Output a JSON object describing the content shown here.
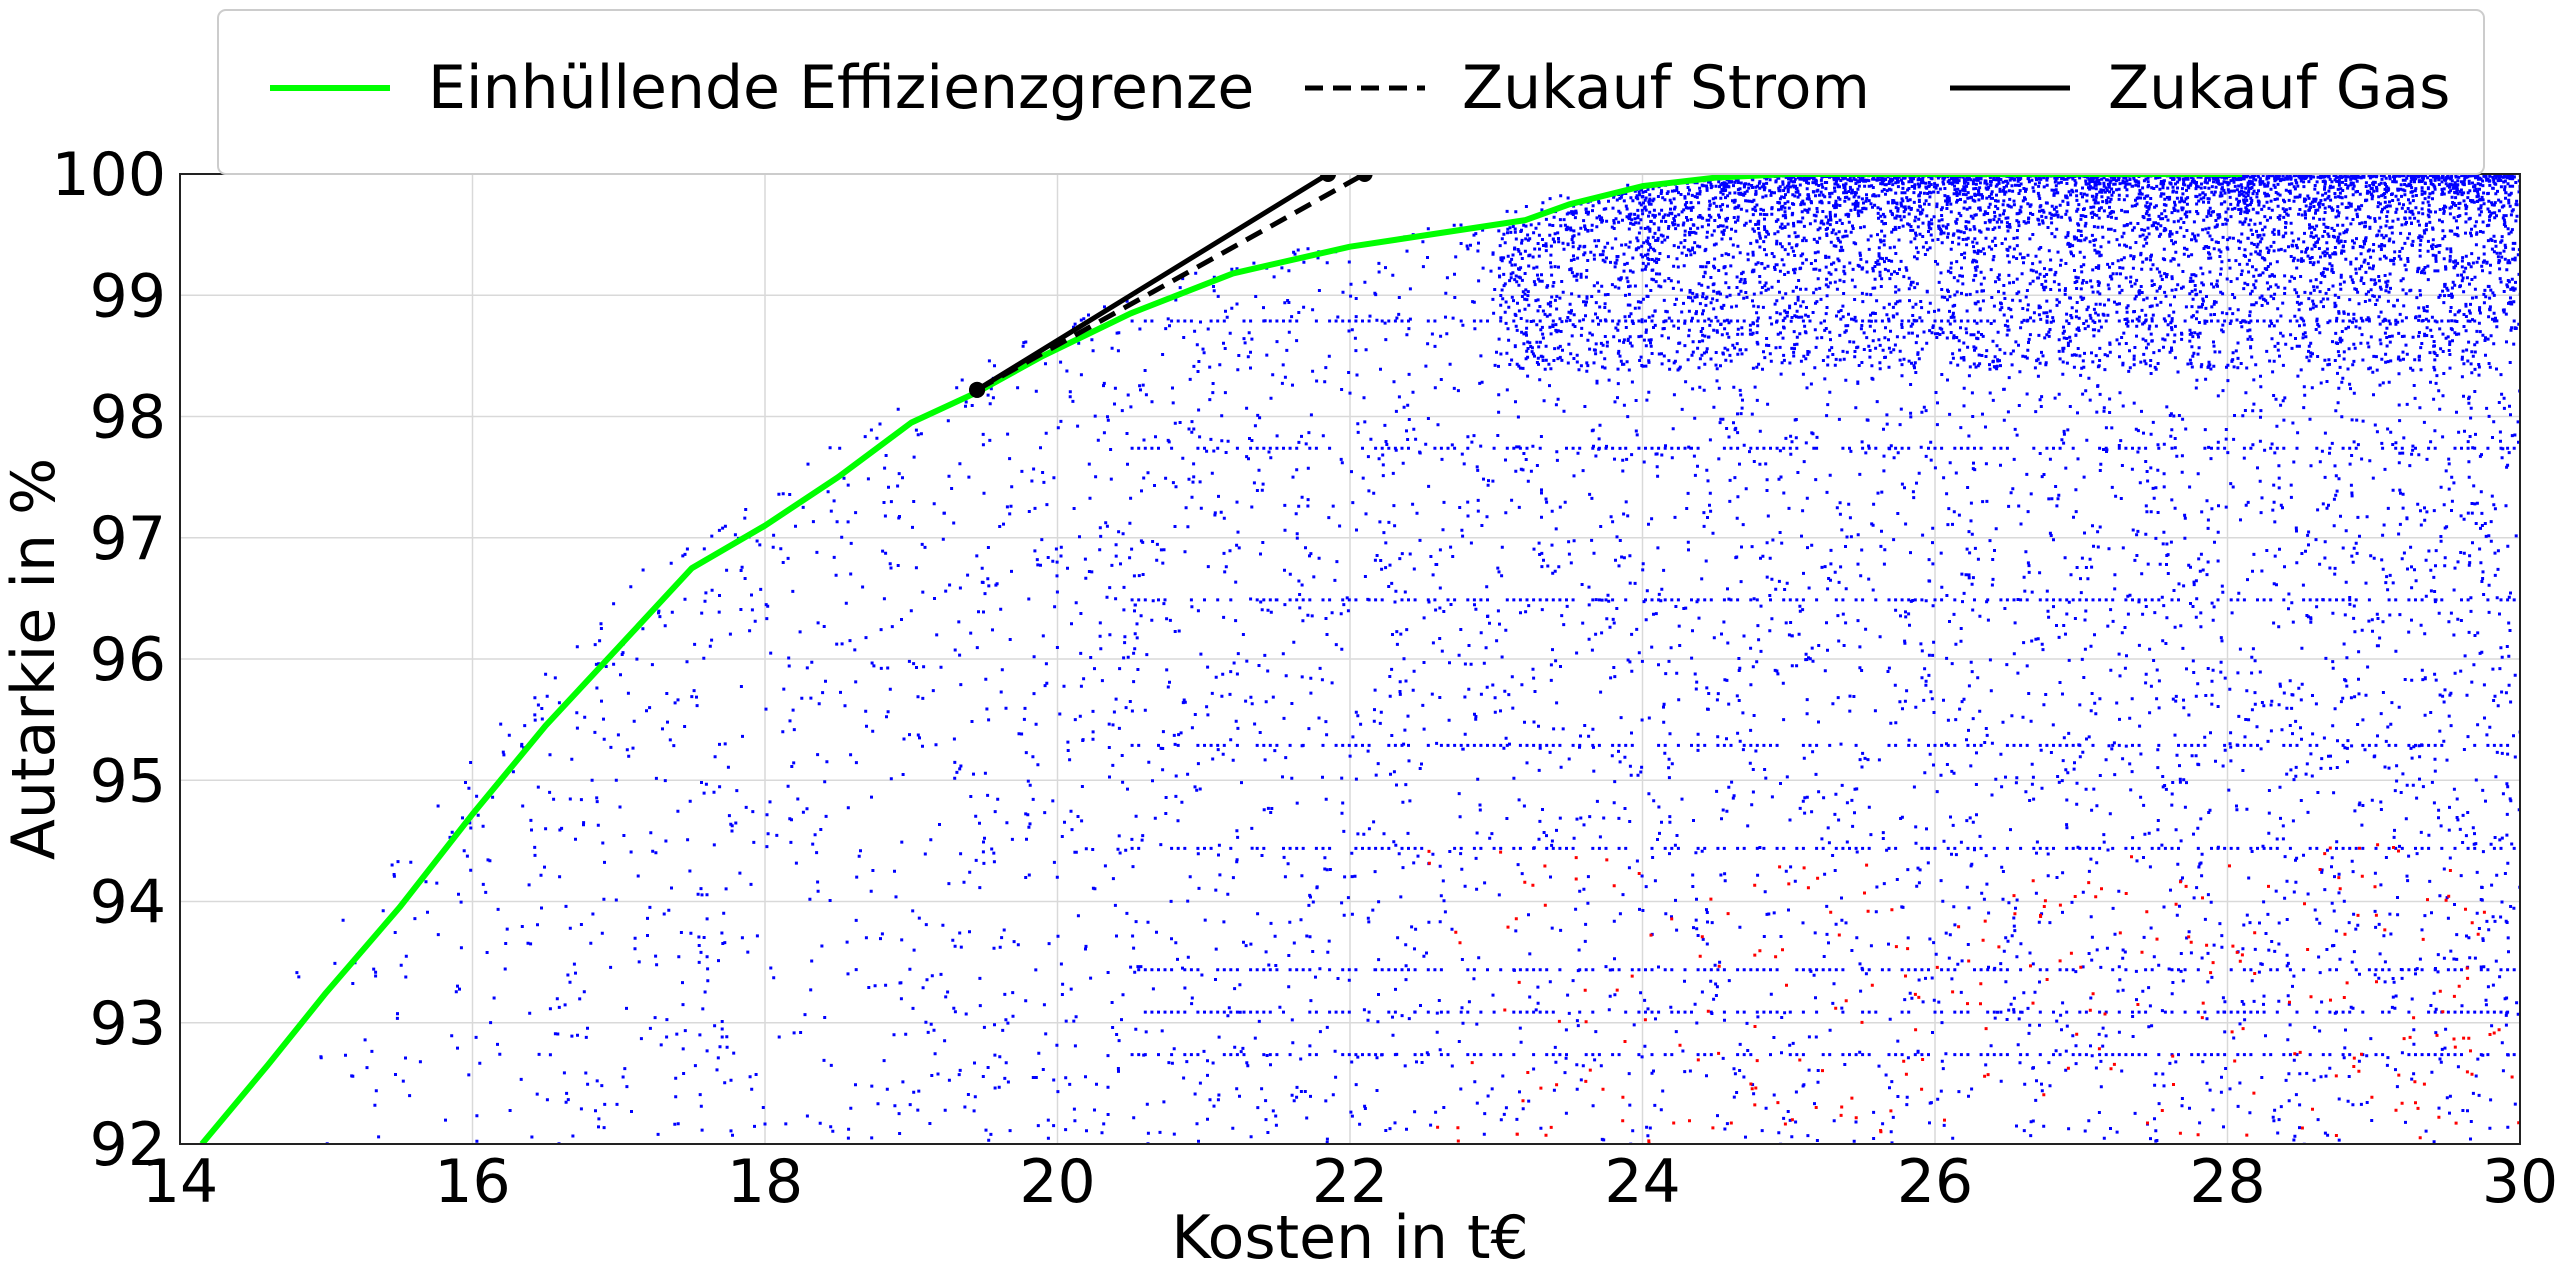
{
  "chart_data": {
    "type": "scatter",
    "xlabel": "Kosten in t€",
    "ylabel": "Autarkie in %",
    "xlim": [
      14,
      30
    ],
    "ylim": [
      92,
      100
    ],
    "xticks": [
      "14",
      "16",
      "18",
      "20",
      "22",
      "24",
      "26",
      "28",
      "30"
    ],
    "yticks": [
      "92",
      "93",
      "94",
      "95",
      "96",
      "97",
      "98",
      "99",
      "100"
    ],
    "grid": true,
    "legend_position": "top-center",
    "legend": [
      {
        "label": "Einhüllende Effizienzgrenze",
        "color": "#00ff00",
        "style": "solid"
      },
      {
        "label": "Zukauf Strom",
        "color": "#000000",
        "style": "dashed"
      },
      {
        "label": "Zukauf Gas",
        "color": "#000000",
        "style": "solid"
      }
    ],
    "scatter_colors": {
      "main": "#0000ff",
      "secondary": "#ff0000"
    },
    "frontier": {
      "name": "Einhüllende Effizienzgrenze",
      "color": "#00ff00",
      "x": [
        14.15,
        14.6,
        15.0,
        15.5,
        16.0,
        16.5,
        17.0,
        17.5,
        18.0,
        18.5,
        19.0,
        19.45,
        19.9,
        20.5,
        21.2,
        22.0,
        23.2,
        23.5,
        24.0,
        24.5,
        25.0,
        26.0,
        28.1
      ],
      "y": [
        92.0,
        92.65,
        93.25,
        93.95,
        94.72,
        95.45,
        96.1,
        96.75,
        97.1,
        97.5,
        97.95,
        98.2,
        98.5,
        98.85,
        99.18,
        99.4,
        99.62,
        99.75,
        99.9,
        99.97,
        100.0,
        100.0,
        100.0
      ]
    },
    "lines": [
      {
        "name": "Zukauf Strom",
        "color": "#000000",
        "style": "dashed",
        "x": [
          19.45,
          22.1
        ],
        "y": [
          98.22,
          100.0
        ]
      },
      {
        "name": "Zukauf Gas",
        "color": "#000000",
        "style": "solid",
        "x": [
          19.45,
          21.85
        ],
        "y": [
          98.22,
          100.0
        ]
      }
    ]
  }
}
